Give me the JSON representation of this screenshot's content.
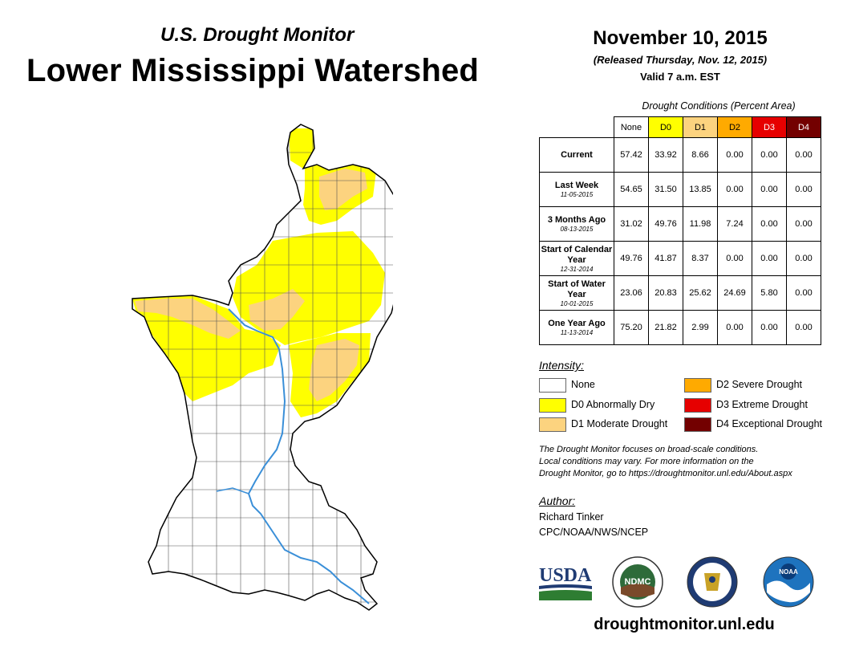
{
  "header": {
    "subtitle": "U.S. Drought Monitor",
    "title": "Lower Mississippi Watershed",
    "date": "November 10, 2015",
    "released": "(Released Thursday, Nov. 12, 2015)",
    "valid": "Valid 7 a.m. EST"
  },
  "table": {
    "caption": "Drought Conditions (Percent Area)",
    "columns": [
      "None",
      "D0",
      "D1",
      "D2",
      "D3",
      "D4"
    ],
    "column_colors": [
      "#ffffff",
      "#ffff00",
      "#fcd37f",
      "#ffaa00",
      "#e60000",
      "#730000"
    ],
    "rows": [
      {
        "label": "Current",
        "date": "",
        "values": [
          "57.42",
          "33.92",
          "8.66",
          "0.00",
          "0.00",
          "0.00"
        ]
      },
      {
        "label": "Last Week",
        "date": "11-05-2015",
        "values": [
          "54.65",
          "31.50",
          "13.85",
          "0.00",
          "0.00",
          "0.00"
        ]
      },
      {
        "label": "3 Months Ago",
        "date": "08-13-2015",
        "values": [
          "31.02",
          "49.76",
          "11.98",
          "7.24",
          "0.00",
          "0.00"
        ]
      },
      {
        "label": "Start of Calendar Year",
        "date": "12-31-2014",
        "values": [
          "49.76",
          "41.87",
          "8.37",
          "0.00",
          "0.00",
          "0.00"
        ]
      },
      {
        "label": "Start of Water Year",
        "date": "10-01-2015",
        "values": [
          "23.06",
          "20.83",
          "25.62",
          "24.69",
          "5.80",
          "0.00"
        ]
      },
      {
        "label": "One Year Ago",
        "date": "11-13-2014",
        "values": [
          "75.20",
          "21.82",
          "2.99",
          "0.00",
          "0.00",
          "0.00"
        ]
      }
    ]
  },
  "legend": {
    "label": "Intensity:",
    "items": [
      {
        "label": "None",
        "color": "#ffffff"
      },
      {
        "label": "D0 Abnormally Dry",
        "color": "#ffff00"
      },
      {
        "label": "D1 Moderate Drought",
        "color": "#fcd37f"
      },
      {
        "label": "D2 Severe Drought",
        "color": "#ffaa00"
      },
      {
        "label": "D3 Extreme Drought",
        "color": "#e60000"
      },
      {
        "label": "D4 Exceptional Drought",
        "color": "#730000"
      }
    ]
  },
  "note": {
    "line1": "The Drought Monitor focuses on broad-scale conditions.",
    "line2": "Local conditions may vary. For more information on the",
    "line3": "Drought Monitor, go to https://droughtmonitor.unl.edu/About.aspx"
  },
  "author": {
    "label": "Author:",
    "name": "Richard Tinker",
    "org": "CPC/NOAA/NWS/NCEP"
  },
  "logos": {
    "usda": "USDA",
    "ndmc": "NDMC",
    "noaa": "NOAA"
  },
  "website": "droughtmonitor.unl.edu",
  "map": {
    "colors": {
      "none": "#ffffff",
      "d0": "#ffff00",
      "d1": "#fcd37f",
      "river": "#3a8fd8"
    }
  }
}
